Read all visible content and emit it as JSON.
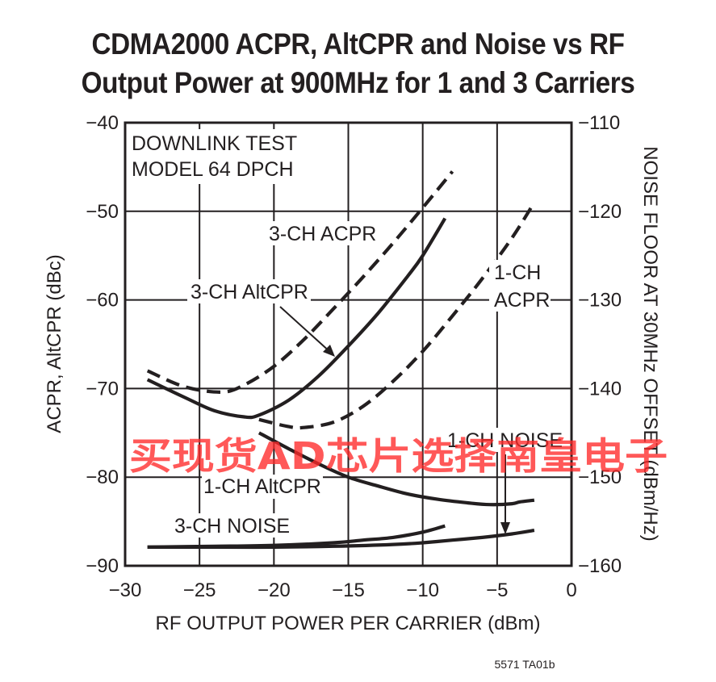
{
  "chart_data": {
    "type": "line",
    "title_line1": "CDMA2000 ACPR, AltCPR and Noise vs RF",
    "title_line2": "Output Power at 900MHz for 1 and 3 Carriers",
    "xlabel": "RF OUTPUT POWER PER CARRIER (dBm)",
    "ylabel": "ACPR, AltCPR (dBc)",
    "y2label": "NOISE FLOOR AT 30MHz OFFSET (dBm/Hz)",
    "xlim": [
      -30,
      0
    ],
    "ylim": [
      -90,
      -40
    ],
    "y2lim": [
      -160,
      -110
    ],
    "xticks": [
      -30,
      -25,
      -20,
      -15,
      -10,
      -5,
      0
    ],
    "yticks": [
      -40,
      -50,
      -60,
      -70,
      -80,
      -90
    ],
    "y2ticks": [
      -110,
      -120,
      -130,
      -140,
      -150,
      -160
    ],
    "xtick_labels": [
      "−30",
      "−25",
      "−20",
      "−15",
      "−10",
      "−5",
      "0"
    ],
    "ytick_labels": [
      "−40",
      "−50",
      "−60",
      "−70",
      "−80",
      "−90"
    ],
    "y2tick_labels": [
      "−110",
      "−120",
      "−130",
      "−140",
      "−150",
      "−160"
    ],
    "grid": true,
    "annotations": {
      "test_model_line1": "DOWNLINK TEST",
      "test_model_line2": "MODEL 64 DPCH",
      "ch3_acpr": "3-CH ACPR",
      "ch3_altcpr": "3-CH AltCPR",
      "ch1_acpr_line1": "1-CH",
      "ch1_acpr_line2": "ACPR",
      "ch1_noise": "1-CH NOISE",
      "ch1_altcpr": "1-CH AltCPR",
      "ch3_noise": "3-CH NOISE"
    },
    "series": [
      {
        "key": "ch3_acpr",
        "axis": "left",
        "style": "dashed",
        "x": [
          -28.5,
          -26,
          -23.5,
          -22,
          -20,
          -18,
          -16,
          -14,
          -12,
          -10,
          -8
        ],
        "y": [
          -68,
          -69.8,
          -70.4,
          -69.6,
          -67.5,
          -64.5,
          -61,
          -57.4,
          -53.6,
          -49.6,
          -45.5
        ]
      },
      {
        "key": "ch3_altcpr",
        "axis": "left",
        "style": "solid",
        "x": [
          -28.5,
          -26,
          -24,
          -22,
          -21,
          -19,
          -17,
          -15,
          -13,
          -11,
          -10,
          -8.5
        ],
        "y": [
          -69,
          -71,
          -72.5,
          -73.2,
          -73,
          -71.3,
          -68.6,
          -65.2,
          -61.5,
          -57.3,
          -55,
          -50.8
        ]
      },
      {
        "key": "ch1_acpr",
        "axis": "left",
        "style": "dashed",
        "x": [
          -21,
          -19,
          -18,
          -16,
          -14,
          -12,
          -10,
          -8,
          -6,
          -4,
          -2.5
        ],
        "y": [
          -73.5,
          -74.3,
          -74.4,
          -73.8,
          -72,
          -69.2,
          -65.8,
          -61.8,
          -57.6,
          -53,
          -49
        ]
      },
      {
        "key": "ch1_altcpr",
        "axis": "left",
        "style": "solid",
        "x": [
          -21,
          -19,
          -17,
          -15,
          -13,
          -11,
          -9,
          -7,
          -5.5,
          -4,
          -3.5,
          -2.5
        ],
        "y": [
          -75,
          -76.8,
          -78.5,
          -80,
          -81,
          -81.9,
          -82.5,
          -82.9,
          -83.1,
          -83,
          -82.8,
          -82.6
        ]
      },
      {
        "key": "ch3_noise",
        "axis": "right",
        "style": "solid",
        "x": [
          -28.5,
          -24,
          -20,
          -16,
          -14,
          -12,
          -10,
          -8.5
        ],
        "y": [
          -157.9,
          -157.8,
          -157.7,
          -157.4,
          -157.1,
          -156.8,
          -156.2,
          -155.5
        ]
      },
      {
        "key": "ch1_noise",
        "axis": "right",
        "style": "solid",
        "x": [
          -28.5,
          -24,
          -20,
          -16,
          -12,
          -10,
          -8,
          -6,
          -4,
          -2.5
        ],
        "y": [
          -157.9,
          -157.9,
          -157.9,
          -157.8,
          -157.6,
          -157.4,
          -157.1,
          -156.8,
          -156.4,
          -156
        ]
      }
    ]
  },
  "figure_code": "5571 TA01b",
  "watermark": {
    "text": "买现货AD芯片选择南皇电子",
    "color": "#ff2a2a"
  }
}
